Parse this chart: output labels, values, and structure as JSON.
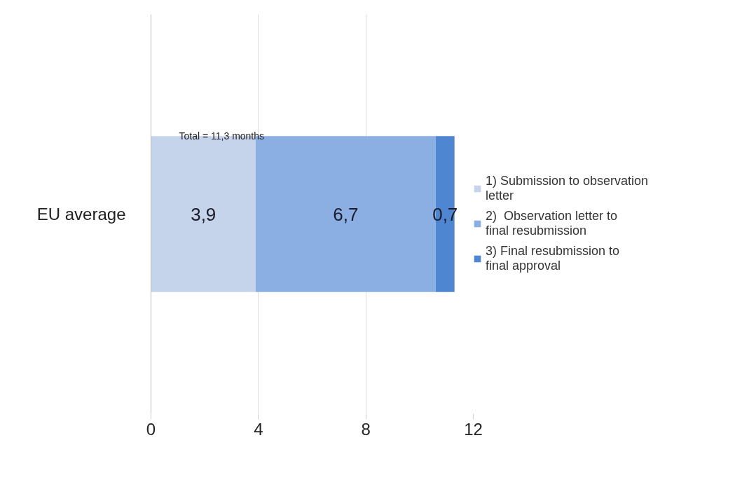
{
  "chart_data": {
    "type": "bar",
    "orientation": "horizontal",
    "stacked": true,
    "categories": [
      "EU average"
    ],
    "series": [
      {
        "name": "1) Submission to observation letter",
        "color": "#c5d4ea",
        "values": [
          3.9
        ],
        "value_labels": [
          "3,9"
        ]
      },
      {
        "name": "2)  Observation letter to final resubmission",
        "color": "#8bafe2",
        "values": [
          6.7
        ],
        "value_labels": [
          "6,7"
        ]
      },
      {
        "name": "3) Final resubmission to final approval",
        "color": "#4f86d2",
        "values": [
          0.7
        ],
        "value_labels": [
          "0,7"
        ]
      }
    ],
    "totals": [
      "Total = 11,3 months"
    ],
    "xlim": [
      0,
      12
    ],
    "xticks": [
      0,
      4,
      8,
      12
    ],
    "grid": "x",
    "legend": "right"
  }
}
